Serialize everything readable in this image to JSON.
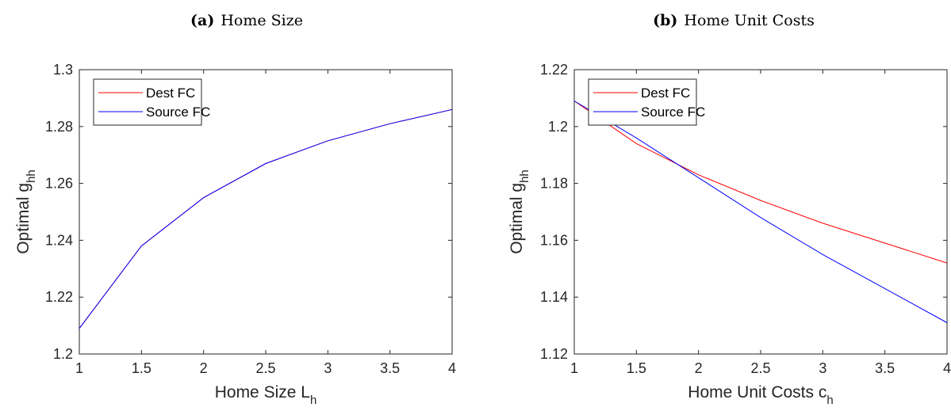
{
  "panels": [
    {
      "caption_prefix": "(a)",
      "caption": "Home Size",
      "chart_data": {
        "type": "line",
        "x": [
          1,
          1.5,
          2,
          2.5,
          3,
          3.5,
          4
        ],
        "series": [
          {
            "name": "Dest FC",
            "color": "#ff0000",
            "values": [
              1.209,
              1.238,
              1.255,
              1.267,
              1.275,
              1.281,
              1.286
            ]
          },
          {
            "name": "Source FC",
            "color": "#0000ff",
            "values": [
              1.209,
              1.238,
              1.255,
              1.267,
              1.275,
              1.281,
              1.286
            ]
          }
        ],
        "xlabel": "Home Size L",
        "xlabel_sub": "h",
        "ylabel": "Optimal g",
        "ylabel_sub": "hh",
        "xlim": [
          1,
          4
        ],
        "ylim": [
          1.2,
          1.3
        ],
        "xticks": [
          1,
          1.5,
          2,
          2.5,
          3,
          3.5,
          4
        ],
        "xtick_labels": [
          "1",
          "1.5",
          "2",
          "2.5",
          "3",
          "3.5",
          "4"
        ],
        "yticks": [
          1.2,
          1.22,
          1.24,
          1.26,
          1.28,
          1.3
        ],
        "ytick_labels": [
          "1.2",
          "1.22",
          "1.24",
          "1.26",
          "1.28",
          "1.3"
        ],
        "grid": false,
        "legend": "top-left"
      }
    },
    {
      "caption_prefix": "(b)",
      "caption": "Home Unit Costs",
      "chart_data": {
        "type": "line",
        "x": [
          1,
          1.5,
          2,
          2.5,
          3,
          3.5,
          4
        ],
        "series": [
          {
            "name": "Dest FC",
            "color": "#ff0000",
            "values": [
              1.209,
              1.194,
              1.183,
              1.174,
              1.166,
              1.159,
              1.152
            ]
          },
          {
            "name": "Source FC",
            "color": "#0000ff",
            "values": [
              1.209,
              1.196,
              1.182,
              1.168,
              1.155,
              1.143,
              1.131
            ]
          }
        ],
        "xlabel": "Home Unit Costs c",
        "xlabel_sub": "h",
        "ylabel": "Optimal g",
        "ylabel_sub": "hh",
        "xlim": [
          1,
          4
        ],
        "ylim": [
          1.12,
          1.22
        ],
        "xticks": [
          1,
          1.5,
          2,
          2.5,
          3,
          3.5,
          4
        ],
        "xtick_labels": [
          "1",
          "1.5",
          "2",
          "2.5",
          "3",
          "3.5",
          "4"
        ],
        "yticks": [
          1.12,
          1.14,
          1.16,
          1.18,
          1.2,
          1.22
        ],
        "ytick_labels": [
          "1.12",
          "1.14",
          "1.16",
          "1.18",
          "1.2",
          "1.22"
        ],
        "grid": false,
        "legend": "top-left"
      }
    }
  ]
}
